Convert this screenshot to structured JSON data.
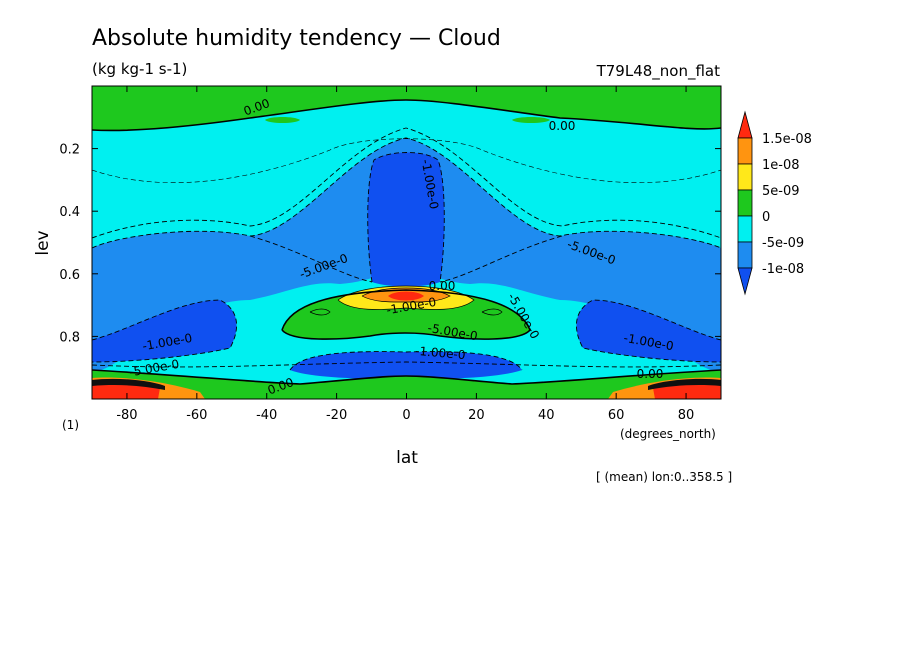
{
  "chart_data": {
    "type": "heatmap",
    "title": "Absolute humidity tendency — Cloud",
    "units": "(kg kg-1 s-1)",
    "experiment": "T79L48_non_flat",
    "xlabel": "lat",
    "x_units": "(degrees_north)",
    "ylabel": "lev",
    "y_units": "(1)",
    "averaging_note": "[ (mean) lon:0..358.5 ]",
    "xlim": [
      -90,
      90
    ],
    "ylim": [
      1.0,
      0.0
    ],
    "x_ticks": [
      -80,
      -60,
      -40,
      -20,
      0,
      20,
      40,
      60,
      80
    ],
    "x_tick_labels": [
      "-80",
      "-60",
      "-40",
      "-20",
      "0",
      "20",
      "40",
      "60",
      "80"
    ],
    "y_ticks": [
      0.2,
      0.4,
      0.6,
      0.8
    ],
    "y_tick_labels": [
      "0.2",
      "0.4",
      "0.6",
      "0.8"
    ],
    "colorbar": {
      "levels": [
        "-1e-08",
        "-5e-09",
        "0",
        "5e-09",
        "1e-08",
        "1.5e-08"
      ],
      "colors": [
        "#ff2a10",
        "#ff9410",
        "#ffe81a",
        "#1ec81e",
        "#00f0f0",
        "#1e8cf0",
        "#1050f0"
      ]
    },
    "contour_labels": [
      "0.00",
      "0.00",
      "0.00",
      "0.00",
      "0.00",
      "-1.00e-0",
      "-1.00e-0",
      "-1.00e-0",
      "-1.00e-0",
      "-1.00e-0",
      "-5.00e-0",
      "-5.00e-0",
      "-5.00e-0",
      "-5.00e-0",
      "-5.00e-0"
    ]
  }
}
